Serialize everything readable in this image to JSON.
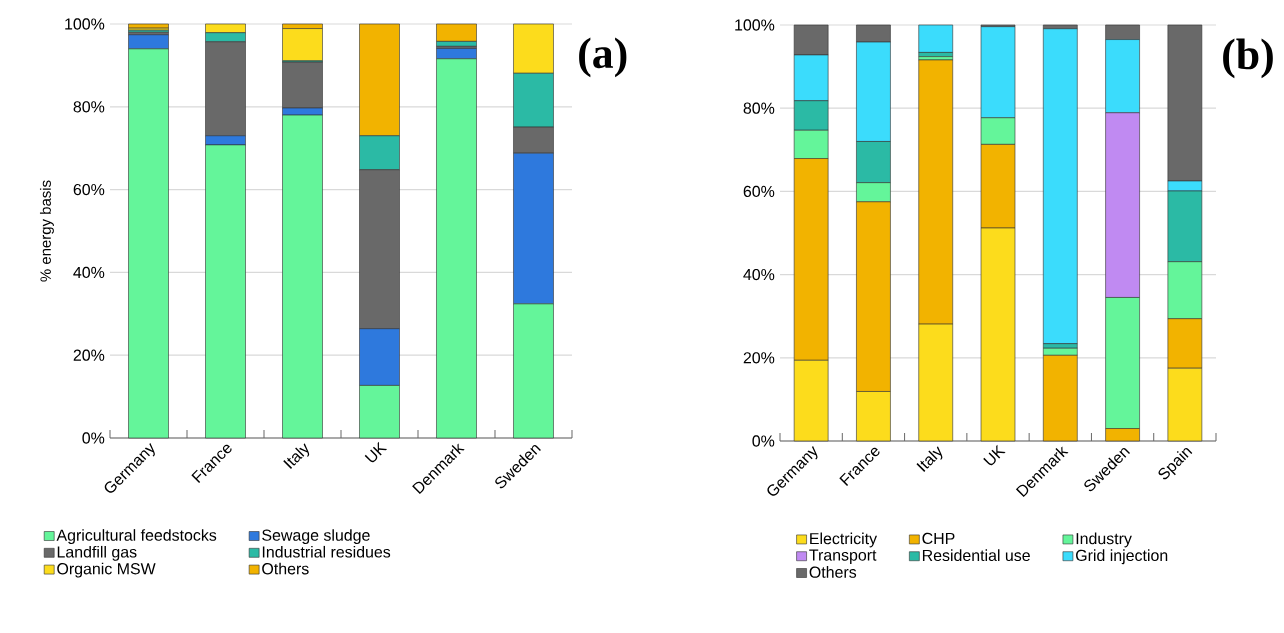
{
  "chart_data": [
    {
      "type": "bar",
      "stacked": true,
      "ylabel": "% energy basis",
      "annotations": [
        "(a)"
      ],
      "categories": [
        "Germany",
        "France",
        "Italy",
        "UK",
        "Denmark",
        "Sweden"
      ],
      "ylim": [
        0,
        100
      ],
      "yticks": [
        {
          "value": 0,
          "label": "0%"
        },
        {
          "value": 20,
          "label": "20%"
        },
        {
          "value": 40,
          "label": "40%"
        },
        {
          "value": 60,
          "label": "60%"
        },
        {
          "value": 80,
          "label": "80%"
        },
        {
          "value": 100,
          "label": "100%"
        }
      ],
      "grid": "y",
      "legend": "bottom",
      "series": [
        {
          "name": "Agricultural feedstocks",
          "color": "#64f59a",
          "values": [
            94.0,
            70.8,
            78.0,
            12.7,
            91.6,
            32.4
          ]
        },
        {
          "name": "Sewage sludge",
          "color": "#2e79dd",
          "values": [
            3.4,
            2.2,
            1.7,
            13.7,
            2.5,
            36.4
          ]
        },
        {
          "name": "Landfill gas",
          "color": "#696969",
          "values": [
            0.6,
            22.7,
            11.1,
            38.4,
            0.5,
            6.3
          ]
        },
        {
          "name": "Industrial residues",
          "color": "#2bbaa5",
          "values": [
            0.5,
            2.2,
            0.3,
            8.2,
            1.2,
            13.0
          ]
        },
        {
          "name": "Organic MSW",
          "color": "#fcdc1c",
          "values": [
            0.5,
            2.1,
            7.8,
            null,
            0,
            11.9
          ]
        },
        {
          "name": "Others",
          "color": "#f2b300",
          "values": [
            1.0,
            0,
            1.1,
            27.0,
            4.2,
            0
          ]
        }
      ]
    },
    {
      "type": "bar",
      "stacked": true,
      "annotations": [
        "(b)"
      ],
      "categories": [
        "Germany",
        "France",
        "Italy",
        "UK",
        "Denmark",
        "Sweden",
        "Spain"
      ],
      "ylim": [
        0,
        100
      ],
      "yticks": [
        {
          "value": 0,
          "label": "0%"
        },
        {
          "value": 20,
          "label": "20%"
        },
        {
          "value": 40,
          "label": "40%"
        },
        {
          "value": 60,
          "label": "60%"
        },
        {
          "value": 80,
          "label": "80%"
        },
        {
          "value": 100,
          "label": "100%"
        }
      ],
      "grid": "y",
      "legend": "bottom",
      "series": [
        {
          "name": "Electricity",
          "color": "#fcdc1c",
          "values": [
            19.4,
            11.9,
            28.1,
            51.2,
            0,
            0,
            17.5
          ]
        },
        {
          "name": "CHP",
          "color": "#f2b300",
          "values": [
            48.5,
            45.6,
            63.5,
            20.1,
            20.6,
            3.0,
            11.9
          ]
        },
        {
          "name": "Industry",
          "color": "#64f59a",
          "values": [
            6.8,
            4.6,
            0.8,
            6.4,
            1.7,
            31.5,
            13.7
          ]
        },
        {
          "name": "Transport",
          "color": "#c08af2",
          "values": [
            0,
            0,
            0,
            0,
            0,
            44.4,
            0
          ]
        },
        {
          "name": "Residential use",
          "color": "#2bbaa5",
          "values": [
            7.1,
            9.9,
            1.0,
            0,
            1.1,
            0,
            17.0
          ]
        },
        {
          "name": "Grid injection",
          "color": "#3bdcfc",
          "values": [
            11.0,
            23.9,
            6.6,
            21.9,
            75.7,
            17.6,
            2.4
          ]
        },
        {
          "name": "Others",
          "color": "#696969",
          "values": [
            7.2,
            4.1,
            0,
            0.4,
            0.9,
            3.5,
            37.5
          ]
        }
      ]
    }
  ]
}
